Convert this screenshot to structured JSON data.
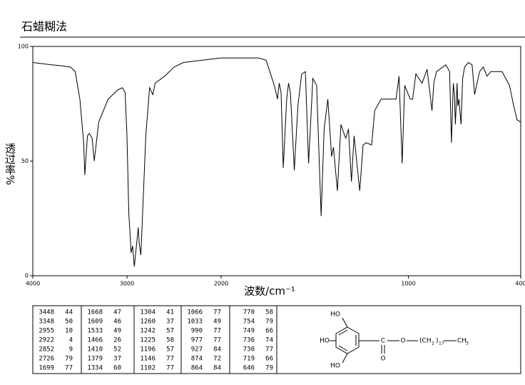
{
  "title": "石蜡糊法",
  "chart_data": {
    "type": "line",
    "x_label": "波数/cm⁻¹",
    "y_label": "透过率%",
    "xlim": [
      4000,
      400
    ],
    "x_scale_break": 2000,
    "xticks": [
      4000,
      3000,
      2000,
      1000,
      400
    ],
    "ylim": [
      0,
      100
    ],
    "yticks": [
      0,
      50,
      100
    ],
    "color": "#000000",
    "x": [
      4000,
      3800,
      3700,
      3600,
      3550,
      3500,
      3460,
      3448,
      3420,
      3400,
      3370,
      3348,
      3300,
      3200,
      3100,
      3050,
      3020,
      3000,
      2980,
      2955,
      2940,
      2922,
      2900,
      2880,
      2870,
      2852,
      2840,
      2800,
      2760,
      2726,
      2700,
      2600,
      2500,
      2400,
      2200,
      2000,
      1900,
      1800,
      1760,
      1740,
      1720,
      1710,
      1699,
      1690,
      1680,
      1668,
      1650,
      1640,
      1630,
      1609,
      1590,
      1570,
      1550,
      1533,
      1510,
      1490,
      1466,
      1450,
      1430,
      1410,
      1400,
      1379,
      1360,
      1340,
      1334,
      1320,
      1304,
      1290,
      1260,
      1242,
      1225,
      1196,
      1180,
      1146,
      1102,
      1066,
      1050,
      1033,
      1020,
      990,
      977,
      960,
      927,
      900,
      874,
      864,
      850,
      800,
      780,
      770,
      760,
      754,
      749,
      740,
      736,
      730,
      719,
      710,
      700,
      680,
      660,
      646,
      620,
      600,
      580,
      560,
      540,
      520,
      500,
      480,
      460,
      440,
      420,
      400
    ],
    "values": [
      93,
      92,
      91.6,
      91,
      89,
      77,
      58,
      44,
      61,
      62,
      60,
      50,
      67,
      77,
      81,
      82,
      80,
      61,
      27,
      10,
      13,
      4,
      13,
      21,
      14,
      9,
      21,
      61,
      82,
      79,
      84,
      87,
      91,
      93,
      94,
      95,
      95,
      95,
      94,
      89,
      84,
      81,
      77,
      84,
      80,
      47,
      77,
      84,
      80,
      46,
      74,
      88,
      89,
      49,
      86,
      83,
      26,
      64,
      77,
      52,
      56,
      37,
      66,
      61,
      60,
      64,
      41,
      61,
      37,
      57,
      58,
      57,
      72,
      77,
      77,
      77,
      87,
      49,
      83,
      77,
      77,
      88,
      84,
      90,
      72,
      84,
      89,
      92,
      89,
      58,
      84,
      79,
      66,
      84,
      74,
      77,
      66,
      86,
      91,
      93,
      92,
      79,
      89,
      91,
      87,
      89,
      89,
      89,
      89,
      86,
      83,
      75,
      68,
      67
    ],
    "peak_table": [
      [
        [
          3448,
          44
        ],
        [
          3348,
          50
        ],
        [
          2955,
          10
        ],
        [
          2922,
          4
        ],
        [
          2852,
          9
        ],
        [
          2726,
          79
        ],
        [
          1699,
          77
        ]
      ],
      [
        [
          1668,
          47
        ],
        [
          1609,
          46
        ],
        [
          1533,
          49
        ],
        [
          1466,
          26
        ],
        [
          1410,
          52
        ],
        [
          1379,
          37
        ],
        [
          1334,
          60
        ]
      ],
      [
        [
          1304,
          41
        ],
        [
          1260,
          37
        ],
        [
          1242,
          57
        ],
        [
          1225,
          58
        ],
        [
          1196,
          57
        ],
        [
          1146,
          77
        ],
        [
          1102,
          77
        ]
      ],
      [
        [
          1066,
          77
        ],
        [
          1033,
          49
        ],
        [
          990,
          77
        ],
        [
          977,
          77
        ],
        [
          927,
          84
        ],
        [
          874,
          72
        ],
        [
          864,
          84
        ]
      ],
      [
        [
          770,
          58
        ],
        [
          754,
          79
        ],
        [
          749,
          66
        ],
        [
          736,
          74
        ],
        [
          730,
          77
        ],
        [
          719,
          66
        ],
        [
          646,
          79
        ]
      ]
    ],
    "structure": {
      "ho_top": "HO",
      "ho_mid": "HO",
      "ho_bottom": "HO",
      "carbonyl_c": "C",
      "carbonyl_o": "O",
      "ester_o": "O",
      "ch_open": "(CH",
      "sub_2": "2",
      "close": ")",
      "sub_17": "17",
      "ch3": "CH",
      "sub_3": "3"
    }
  }
}
